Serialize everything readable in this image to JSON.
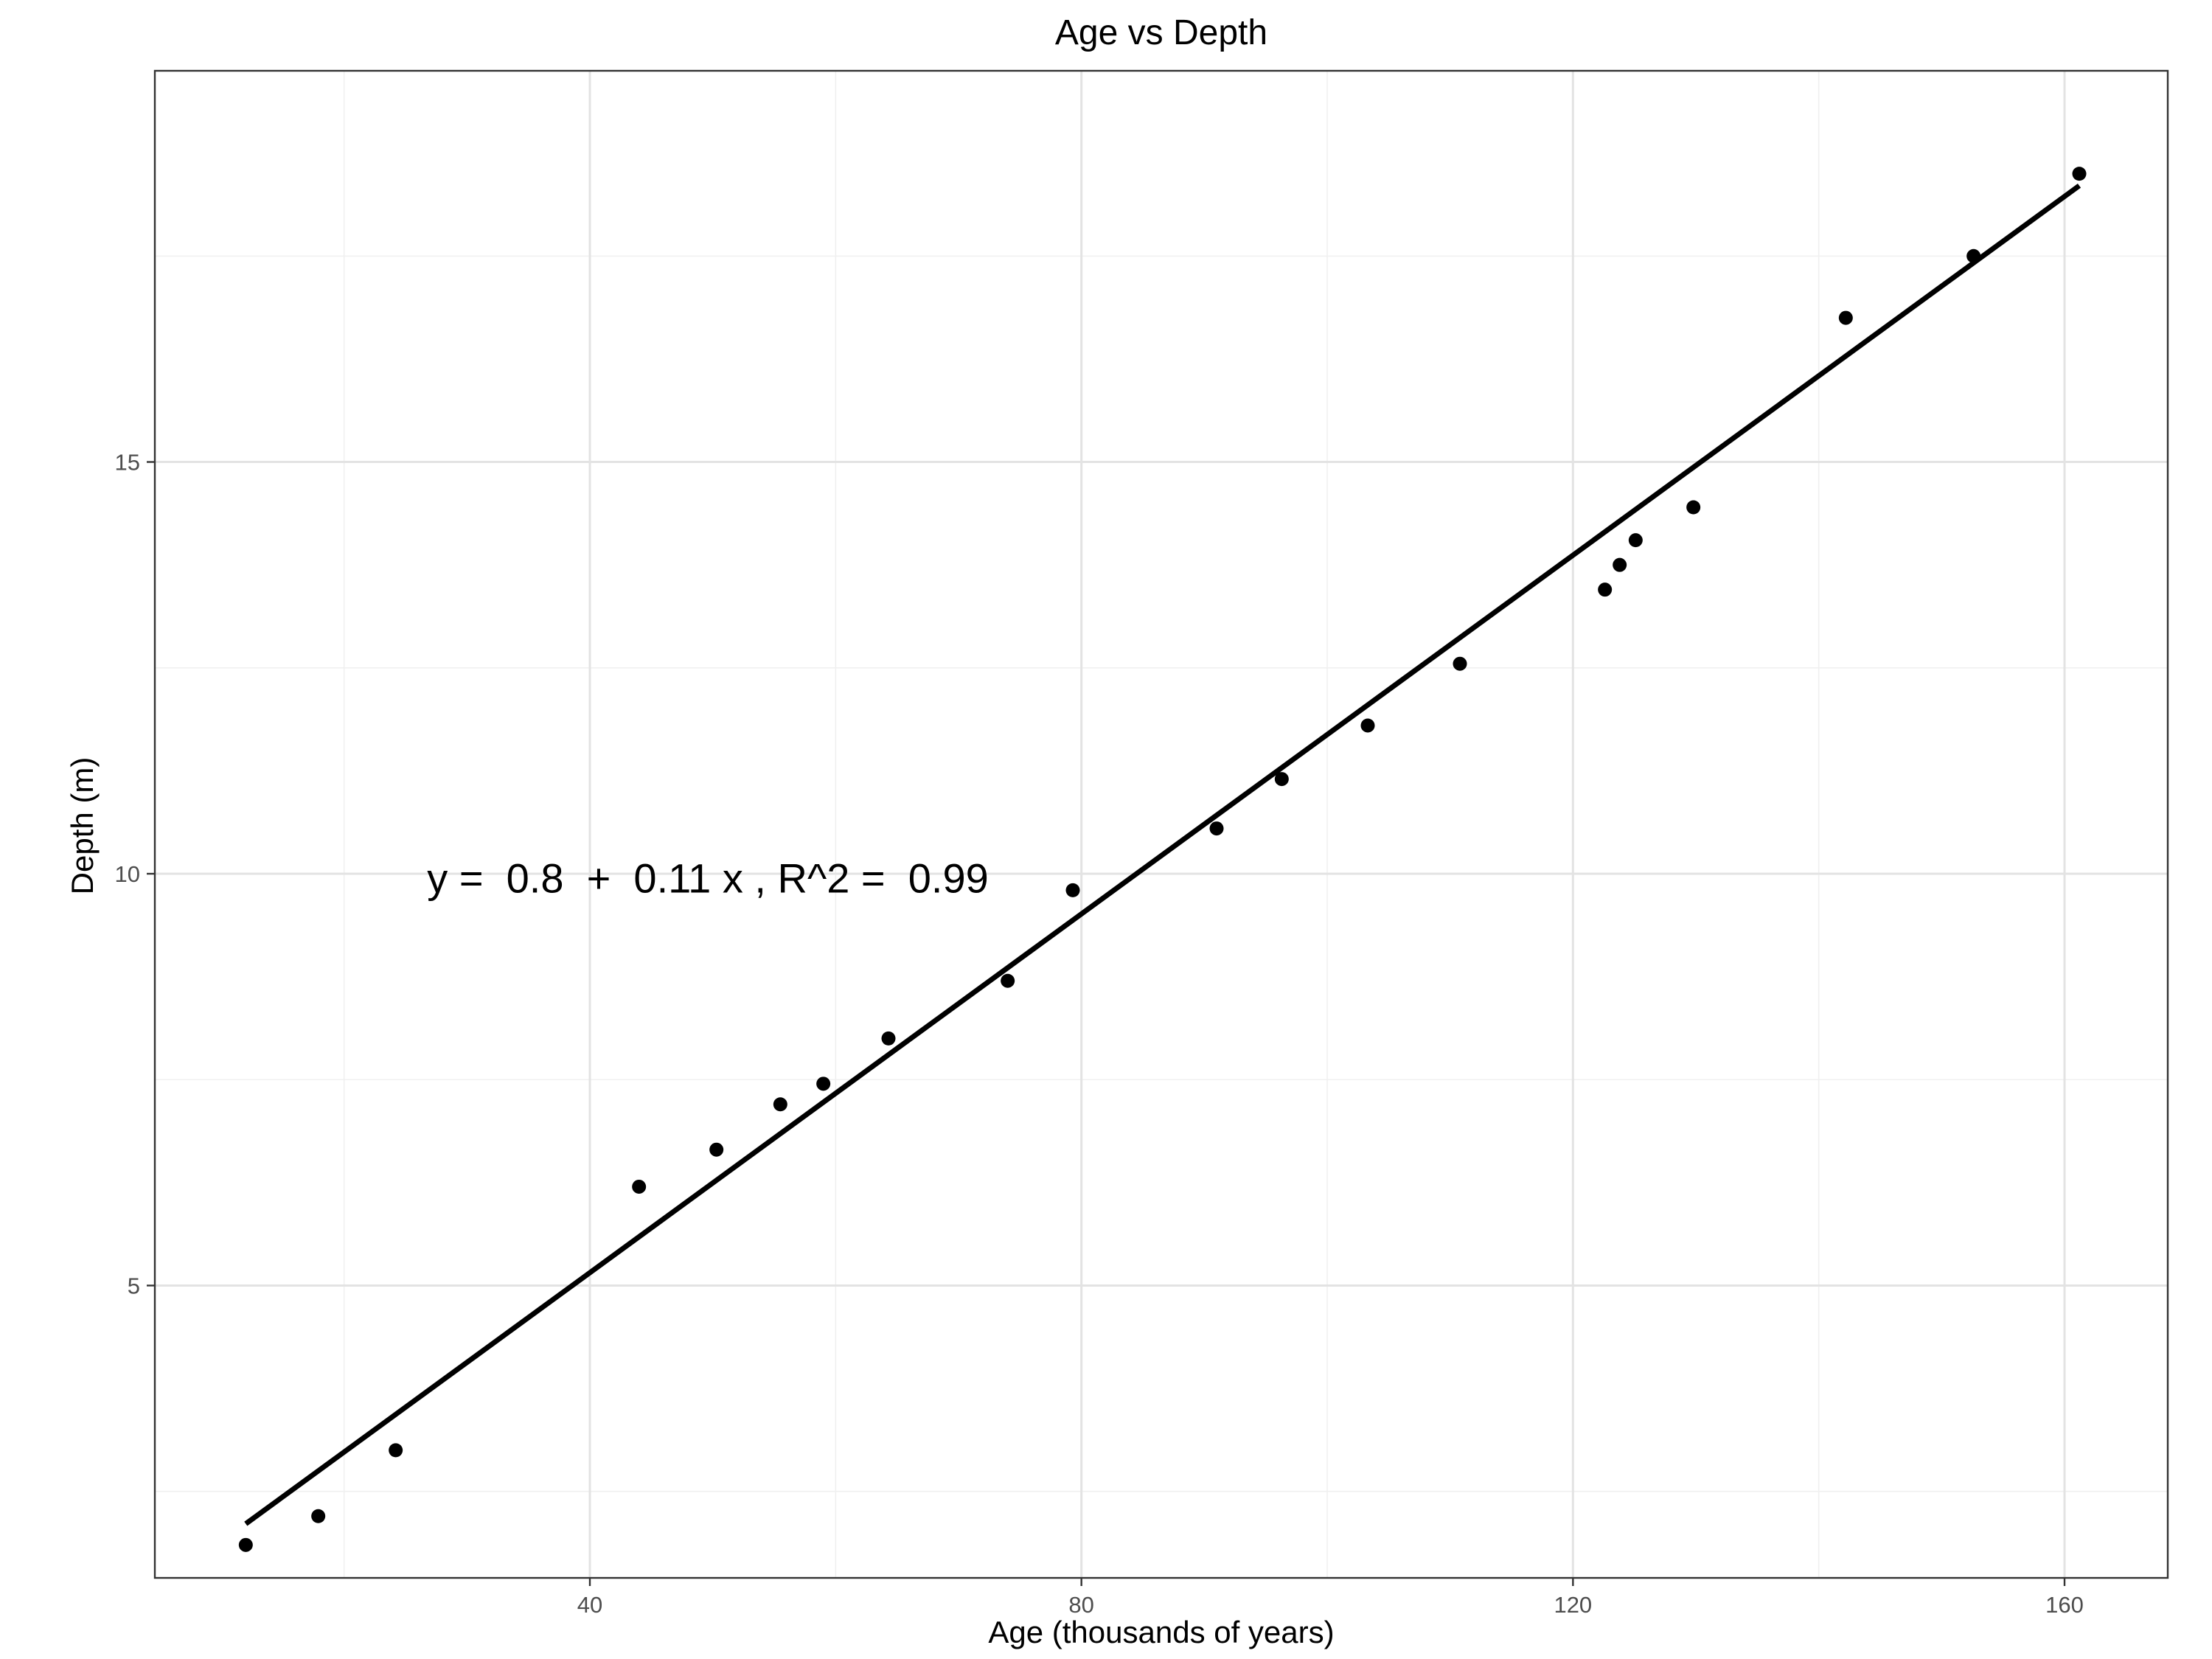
{
  "chart_data": {
    "type": "scatter",
    "title": "Age vs Depth",
    "xlabel": "Age (thousands of years)",
    "ylabel": "Depth (m)",
    "xlim": [
      4.6,
      168.4
    ],
    "ylim": [
      1.45,
      19.75
    ],
    "x_ticks": [
      40,
      80,
      120,
      160
    ],
    "y_ticks": [
      5,
      10,
      15
    ],
    "grid": true,
    "points": [
      {
        "x": 12.0,
        "y": 1.85
      },
      {
        "x": 17.9,
        "y": 2.2
      },
      {
        "x": 24.2,
        "y": 3.0
      },
      {
        "x": 44.0,
        "y": 6.2
      },
      {
        "x": 50.3,
        "y": 6.65
      },
      {
        "x": 55.5,
        "y": 7.2
      },
      {
        "x": 59.0,
        "y": 7.45
      },
      {
        "x": 64.3,
        "y": 8.0
      },
      {
        "x": 74.0,
        "y": 8.7
      },
      {
        "x": 79.3,
        "y": 9.8
      },
      {
        "x": 91.0,
        "y": 10.55
      },
      {
        "x": 96.3,
        "y": 11.15
      },
      {
        "x": 103.3,
        "y": 11.8
      },
      {
        "x": 110.8,
        "y": 12.55
      },
      {
        "x": 122.6,
        "y": 13.45
      },
      {
        "x": 123.8,
        "y": 13.75
      },
      {
        "x": 125.1,
        "y": 14.05
      },
      {
        "x": 129.8,
        "y": 14.45
      },
      {
        "x": 142.2,
        "y": 16.75
      },
      {
        "x": 152.6,
        "y": 17.5
      },
      {
        "x": 161.2,
        "y": 18.5
      }
    ],
    "fit_line": {
      "intercept": 0.8,
      "slope": 0.1089,
      "x_range": [
        12.0,
        161.2
      ]
    },
    "annotation": {
      "text": "y =  0.8  +  0.11 x , R^2 =  0.99",
      "x": 25,
      "y": 9.95
    }
  }
}
